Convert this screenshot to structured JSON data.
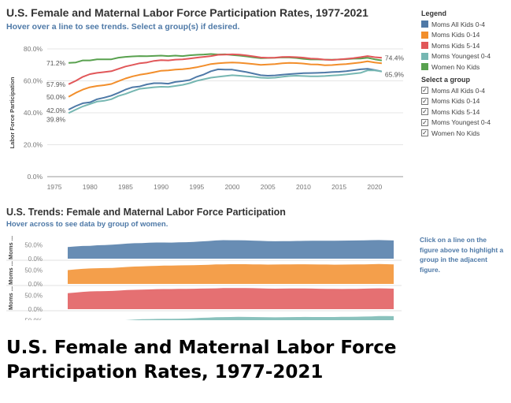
{
  "header": {
    "title": "U.S. Female and Maternal Labor Force Participation Rates, 1977-2021",
    "subtitle": "Hover over a line to see trends. Select a group(s) if desired."
  },
  "legend": {
    "title": "Legend",
    "items": [
      {
        "label": "Moms All Kids 0-4",
        "color": "#4e79a7"
      },
      {
        "label": "Moms Kids 0-14",
        "color": "#f28e2b"
      },
      {
        "label": "Moms Kids 5-14",
        "color": "#e15759"
      },
      {
        "label": "Moms Youngest 0-4",
        "color": "#76b7b2"
      },
      {
        "label": "Women No Kids",
        "color": "#59a14f"
      }
    ]
  },
  "filter": {
    "title": "Select a group",
    "items": [
      {
        "label": "Moms All Kids 0-4",
        "checked": true
      },
      {
        "label": "Moms Kids 0-14",
        "checked": true
      },
      {
        "label": "Moms Kids 5-14",
        "checked": true
      },
      {
        "label": "Moms Youngest 0-4",
        "checked": true
      },
      {
        "label": "Women No Kids",
        "checked": true
      }
    ],
    "check_glyph": "✓"
  },
  "bottom": {
    "title": "U.S. Trends: Female and Maternal Labor Force Participation",
    "subtitle": "Hover across to see data by group of women.",
    "hint": "Click on a line on the figure above to highlight a group in the adjacent figure.",
    "row_labels": [
      "Moms ...",
      "Moms ...",
      "Moms ...",
      ""
    ]
  },
  "caption": "U.S. Female and Maternal Labor Force Participation Rates, 1977-2021",
  "chart_data": [
    {
      "type": "line",
      "title": "U.S. Female and Maternal Labor Force Participation Rates, 1977-2021",
      "xlabel": "",
      "ylabel": "Labor Force Participation",
      "xlim": [
        1974,
        2024
      ],
      "ylim": [
        0,
        80
      ],
      "xticks": [
        "1975",
        "1980",
        "1985",
        "1990",
        "1995",
        "2000",
        "2005",
        "2010",
        "2015",
        "2020"
      ],
      "yticks": [
        "0.0%",
        "20.0%",
        "40.0%",
        "60.0%",
        "80.0%"
      ],
      "grid": true,
      "legend_position": "right",
      "start_labels": [
        "71.2%",
        "57.9%",
        "50.0%",
        "42.0%",
        "39.8%"
      ],
      "end_labels": [
        "74.4%",
        "65.9%"
      ],
      "x": [
        1977,
        1978,
        1979,
        1980,
        1981,
        1982,
        1983,
        1984,
        1985,
        1986,
        1987,
        1988,
        1989,
        1990,
        1991,
        1992,
        1993,
        1994,
        1995,
        1996,
        1997,
        1998,
        1999,
        2000,
        2001,
        2002,
        2003,
        2004,
        2005,
        2006,
        2007,
        2008,
        2009,
        2010,
        2011,
        2012,
        2013,
        2014,
        2015,
        2016,
        2017,
        2018,
        2019,
        2020,
        2021
      ],
      "series": [
        {
          "name": "Women No Kids",
          "color": "#59a14f",
          "values": [
            71.2,
            71.5,
            72.8,
            72.8,
            73.5,
            73.5,
            73.5,
            74.5,
            75.0,
            75.3,
            75.5,
            75.4,
            75.6,
            75.8,
            75.5,
            75.8,
            75.5,
            76.0,
            76.3,
            76.5,
            76.8,
            76.5,
            76.6,
            76.2,
            75.8,
            75.3,
            74.7,
            74.2,
            74.3,
            74.4,
            74.7,
            74.6,
            74.3,
            73.8,
            73.4,
            73.4,
            73.3,
            73.2,
            73.4,
            73.6,
            73.9,
            74.0,
            74.4,
            73.5,
            72.8
          ]
        },
        {
          "name": "Moms Kids 5-14",
          "color": "#e15759",
          "values": [
            57.9,
            60.0,
            62.5,
            64.2,
            65.0,
            65.5,
            66.0,
            67.5,
            69.0,
            70.0,
            71.0,
            71.5,
            72.5,
            73.0,
            72.8,
            73.3,
            73.5,
            74.0,
            74.5,
            75.0,
            75.5,
            76.3,
            76.4,
            76.6,
            76.4,
            75.9,
            75.3,
            74.6,
            74.4,
            74.5,
            74.9,
            75.0,
            74.8,
            74.5,
            74.0,
            73.8,
            73.3,
            73.1,
            73.4,
            73.8,
            74.2,
            74.8,
            75.5,
            74.8,
            74.4
          ]
        },
        {
          "name": "Moms Kids 0-14",
          "color": "#f28e2b",
          "values": [
            50.0,
            52.5,
            54.5,
            56.0,
            56.8,
            57.3,
            58.0,
            59.8,
            61.5,
            62.8,
            63.8,
            64.5,
            65.4,
            66.3,
            66.5,
            67.0,
            67.3,
            67.8,
            68.5,
            69.5,
            70.5,
            71.0,
            71.3,
            71.5,
            71.3,
            70.9,
            70.5,
            70.0,
            70.2,
            70.5,
            71.0,
            71.2,
            71.1,
            70.8,
            70.3,
            70.2,
            69.8,
            69.9,
            70.2,
            70.5,
            71.0,
            71.5,
            72.2,
            71.5,
            71.0
          ]
        },
        {
          "name": "Moms All Kids 0-4",
          "color": "#4e79a7",
          "values": [
            42.0,
            44.2,
            46.0,
            46.5,
            48.5,
            49.5,
            50.7,
            52.5,
            54.5,
            56.0,
            56.5,
            57.8,
            58.5,
            58.5,
            58.2,
            59.3,
            59.8,
            60.5,
            62.5,
            64.0,
            66.0,
            67.2,
            67.0,
            67.0,
            66.2,
            65.5,
            64.5,
            63.5,
            63.2,
            63.4,
            63.8,
            64.2,
            64.5,
            64.8,
            64.9,
            65.0,
            65.2,
            65.5,
            65.7,
            66.0,
            66.6,
            67.2,
            67.5,
            66.8,
            65.9
          ]
        },
        {
          "name": "Moms Youngest 0-4",
          "color": "#76b7b2",
          "values": [
            39.8,
            42.0,
            44.0,
            45.5,
            47.0,
            47.5,
            48.5,
            50.5,
            51.8,
            53.5,
            55.0,
            55.5,
            56.0,
            56.3,
            56.2,
            56.8,
            57.5,
            58.5,
            60.0,
            61.0,
            62.0,
            62.5,
            63.0,
            63.5,
            63.2,
            62.8,
            62.5,
            62.0,
            61.8,
            62.0,
            62.5,
            63.0,
            63.2,
            63.0,
            62.8,
            62.8,
            63.0,
            63.3,
            63.6,
            64.0,
            64.5,
            65.0,
            66.5,
            66.5,
            65.9
          ]
        }
      ]
    },
    {
      "type": "area",
      "title": "U.S. Trends: Female and Maternal Labor Force Participation",
      "row_yticks": [
        "0.0%",
        "50.0%"
      ],
      "rows": [
        {
          "name": "Moms All Kids 0-4",
          "color": "#4e79a7"
        },
        {
          "name": "Moms Kids 0-14",
          "color": "#f28e2b"
        },
        {
          "name": "Moms Kids 5-14",
          "color": "#e15759"
        },
        {
          "name": "Moms Youngest 0-4",
          "color": "#76b7b2"
        }
      ]
    }
  ]
}
